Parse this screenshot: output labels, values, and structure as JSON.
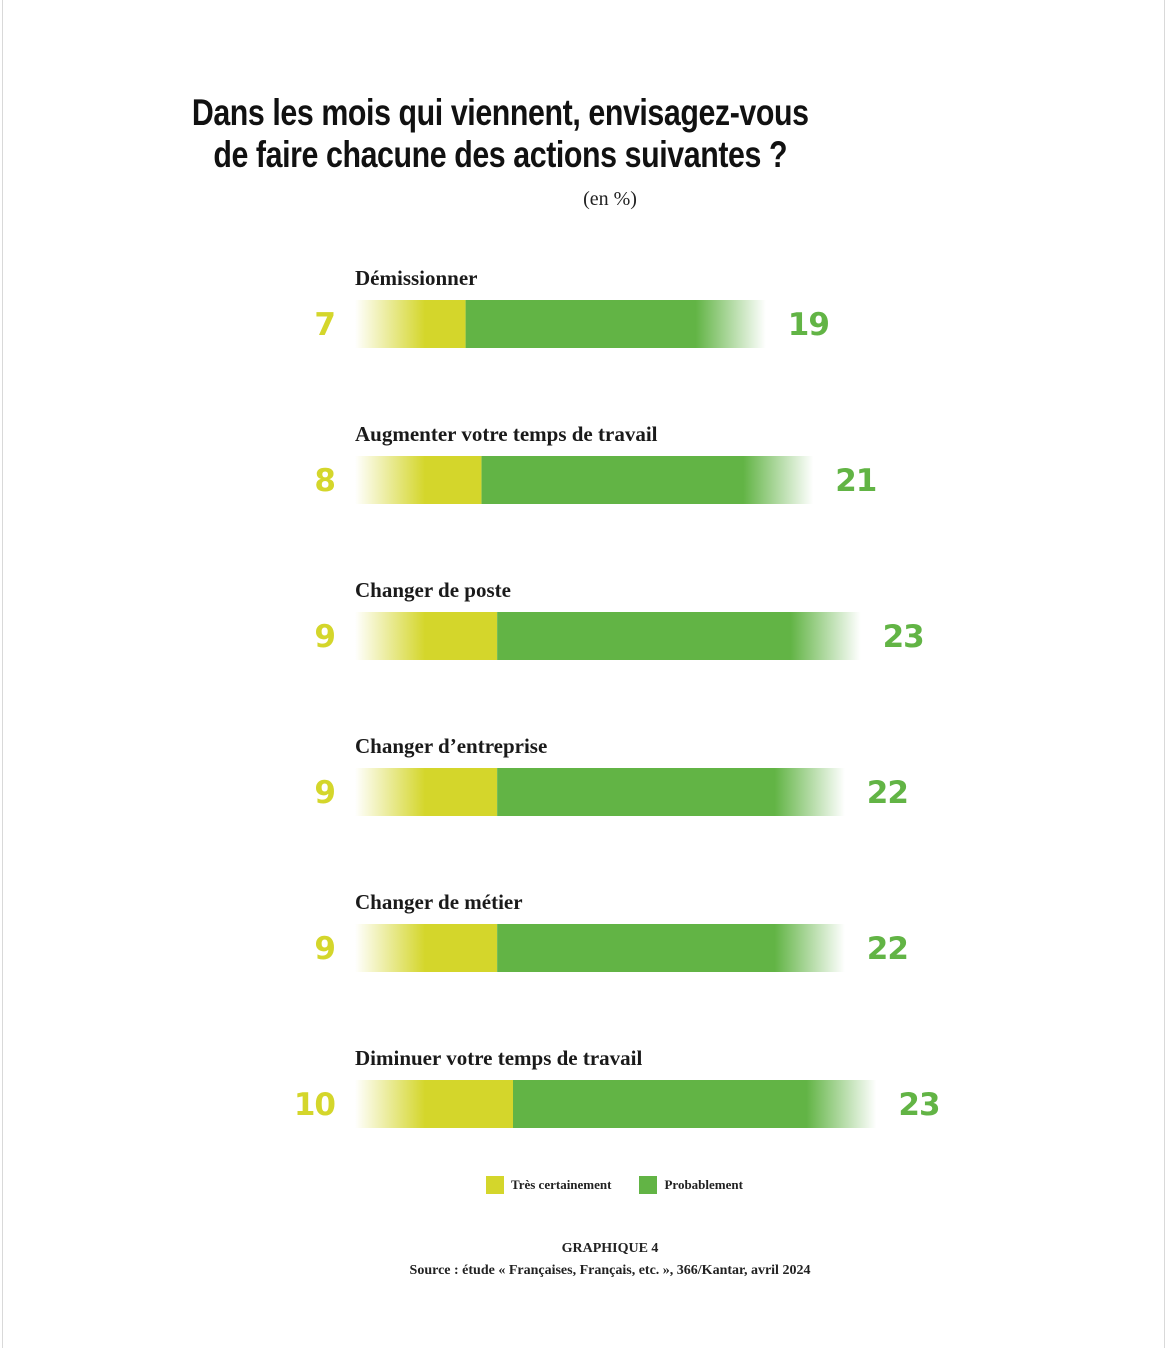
{
  "title_line1": "Dans les mois qui viennent, envisagez-vous",
  "title_line2": "de faire chacune des actions suivantes ?",
  "subtitle": "(en %)",
  "colors": {
    "tres_certainement": "#d4d62b",
    "probablement": "#62b445"
  },
  "legend": {
    "tres_certainement": "Très certainement",
    "probablement": "Probablement"
  },
  "footer": {
    "label": "GRAPHIQUE 4",
    "source": "Source : étude « Françaises, Français, etc. », 366/Kantar, avril 2024"
  },
  "chart_data": {
    "type": "bar",
    "orientation": "horizontal",
    "stacked": true,
    "categories": [
      "Démissionner",
      "Augmenter votre temps de travail",
      "Changer de poste",
      "Changer d’entreprise",
      "Changer de métier",
      "Diminuer votre temps de travail"
    ],
    "series": [
      {
        "name": "Très certainement",
        "values": [
          7,
          8,
          9,
          9,
          9,
          10
        ]
      },
      {
        "name": "Probablement",
        "values": [
          19,
          21,
          23,
          22,
          22,
          23
        ]
      }
    ],
    "legend_position": "bottom"
  }
}
